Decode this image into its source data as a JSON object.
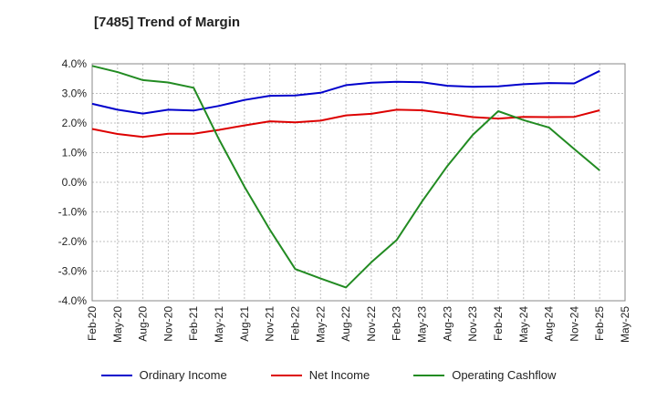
{
  "title": "[7485]  Trend of Margin",
  "chart_data": {
    "type": "line",
    "title": "[7485]  Trend of Margin",
    "xlabel": "",
    "ylabel": "",
    "ylim": [
      -4.0,
      4.0
    ],
    "yticks": [
      "4.0%",
      "3.0%",
      "2.0%",
      "1.0%",
      "0.0%",
      "-1.0%",
      "-2.0%",
      "-3.0%",
      "-4.0%"
    ],
    "ytick_values": [
      4,
      3,
      2,
      1,
      0,
      -1,
      -2,
      -3,
      -4
    ],
    "categories": [
      "Feb-20",
      "May-20",
      "Aug-20",
      "Nov-20",
      "Feb-21",
      "May-21",
      "Aug-21",
      "Nov-21",
      "Feb-22",
      "May-22",
      "Aug-22",
      "Nov-22",
      "Feb-23",
      "May-23",
      "Aug-23",
      "Nov-23",
      "Feb-24",
      "May-24",
      "Aug-24",
      "Nov-24",
      "Feb-25",
      "May-25"
    ],
    "grid": true,
    "legend_position": "bottom",
    "series": [
      {
        "name": "Ordinary Income",
        "color": "#0000cc",
        "values": [
          2.65,
          2.45,
          2.32,
          2.45,
          2.42,
          2.58,
          2.78,
          2.92,
          2.93,
          3.02,
          3.28,
          3.36,
          3.39,
          3.38,
          3.26,
          3.22,
          3.24,
          3.31,
          3.35,
          3.34,
          3.76,
          null
        ]
      },
      {
        "name": "Net Income",
        "color": "#dd0000",
        "values": [
          1.8,
          1.63,
          1.53,
          1.64,
          1.64,
          1.77,
          1.92,
          2.06,
          2.02,
          2.08,
          2.26,
          2.31,
          2.45,
          2.43,
          2.32,
          2.2,
          2.15,
          2.21,
          2.2,
          2.21,
          2.43,
          null
        ]
      },
      {
        "name": "Operating Cashflow",
        "color": "#228b22",
        "values": [
          3.93,
          3.72,
          3.45,
          3.37,
          3.19,
          1.45,
          -0.15,
          -1.6,
          -2.93,
          -3.25,
          -3.55,
          -2.7,
          -1.95,
          -0.65,
          0.55,
          1.6,
          2.4,
          2.1,
          1.85,
          1.12,
          0.4,
          null
        ]
      }
    ]
  }
}
